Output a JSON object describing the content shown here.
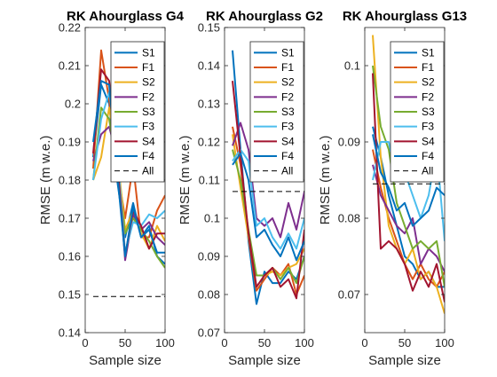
{
  "figure": {
    "background": "#ffffff"
  },
  "chart_data": [
    {
      "type": "line",
      "title": "RK Ahourglass G4",
      "xlabel": "Sample size",
      "ylabel": "RMSE (m w.e.)",
      "xlim": [
        0,
        100
      ],
      "ylim": [
        0.14,
        0.22
      ],
      "xticks": [
        0,
        50,
        100
      ],
      "xtick_labels": [
        "0",
        "50",
        "100"
      ],
      "yticks": [
        0.14,
        0.15,
        0.16,
        0.17,
        0.18,
        0.19,
        0.2,
        0.21,
        0.22
      ],
      "ytick_labels": [
        "0.14",
        "0.15",
        "0.16",
        "0.17",
        "0.18",
        "0.19",
        "0.2",
        "0.21",
        "0.22"
      ],
      "legend_position": "top-right",
      "x": [
        10,
        20,
        30,
        40,
        50,
        60,
        70,
        80,
        90,
        100
      ],
      "series": [
        {
          "name": "S1",
          "color": "#0072BD",
          "style": "solid",
          "values": [
            0.186,
            0.205,
            0.2,
            0.18,
            0.165,
            0.174,
            0.165,
            0.168,
            0.16,
            0.158
          ]
        },
        {
          "name": "F1",
          "color": "#D95319",
          "style": "solid",
          "values": [
            0.183,
            0.214,
            0.201,
            0.183,
            0.17,
            0.184,
            0.165,
            0.165,
            0.172,
            0.176
          ]
        },
        {
          "name": "S2",
          "color": "#EDB120",
          "style": "solid",
          "values": [
            0.18,
            0.186,
            0.199,
            0.187,
            0.167,
            0.172,
            0.166,
            0.162,
            0.168,
            0.164
          ]
        },
        {
          "name": "F2",
          "color": "#7E2F8E",
          "style": "solid",
          "values": [
            0.185,
            0.192,
            0.194,
            0.186,
            0.159,
            0.171,
            0.167,
            0.169,
            0.165,
            0.163
          ]
        },
        {
          "name": "S3",
          "color": "#77AC30",
          "style": "solid",
          "values": [
            0.18,
            0.199,
            0.196,
            0.183,
            0.166,
            0.17,
            0.167,
            0.164,
            0.16,
            0.157
          ]
        },
        {
          "name": "F3",
          "color": "#4DBEEE",
          "style": "solid",
          "values": [
            0.18,
            0.196,
            0.203,
            0.188,
            0.161,
            0.169,
            0.168,
            0.171,
            0.17,
            0.172
          ]
        },
        {
          "name": "S4",
          "color": "#A2142F",
          "style": "solid",
          "values": [
            0.187,
            0.209,
            0.206,
            0.185,
            0.16,
            0.172,
            0.168,
            0.162,
            0.166,
            0.166
          ]
        },
        {
          "name": "F4",
          "color": "#0072BD",
          "style": "solid",
          "values": [
            0.19,
            0.206,
            0.205,
            0.182,
            0.16,
            0.173,
            0.165,
            0.167,
            0.161,
            0.161
          ]
        },
        {
          "name": "All",
          "color": "#000000",
          "style": "dashed",
          "values": [
            0.1495,
            0.1495,
            0.1495,
            0.1495,
            0.1495,
            0.1495,
            0.1495,
            0.1495,
            0.1495,
            0.1495
          ]
        }
      ]
    },
    {
      "type": "line",
      "title": "RK Ahourglass  G2",
      "xlabel": "Sample size",
      "ylabel": "RMSE (m w.e.)",
      "xlim": [
        0,
        100
      ],
      "ylim": [
        0.07,
        0.15
      ],
      "xticks": [
        0,
        50,
        100
      ],
      "xtick_labels": [
        "0",
        "50",
        "100"
      ],
      "yticks": [
        0.07,
        0.08,
        0.09,
        0.1,
        0.11,
        0.12,
        0.13,
        0.14,
        0.15
      ],
      "ytick_labels": [
        "0.07",
        "0.08",
        "0.09",
        "0.1",
        "0.11",
        "0.12",
        "0.13",
        "0.14",
        "0.15"
      ],
      "legend_position": "top-right",
      "x": [
        10,
        20,
        30,
        40,
        50,
        60,
        70,
        80,
        90,
        100
      ],
      "series": [
        {
          "name": "S1",
          "color": "#0072BD",
          "style": "solid",
          "values": [
            0.144,
            0.118,
            0.094,
            0.0775,
            0.086,
            0.083,
            0.083,
            0.086,
            0.084,
            0.09
          ]
        },
        {
          "name": "F1",
          "color": "#D95319",
          "style": "solid",
          "values": [
            0.124,
            0.114,
            0.095,
            0.081,
            0.084,
            0.087,
            0.085,
            0.088,
            0.08,
            0.085
          ]
        },
        {
          "name": "S2",
          "color": "#EDB120",
          "style": "solid",
          "values": [
            0.122,
            0.108,
            0.095,
            0.085,
            0.085,
            0.086,
            0.085,
            0.087,
            0.088,
            0.092
          ]
        },
        {
          "name": "F2",
          "color": "#7E2F8E",
          "style": "solid",
          "values": [
            0.119,
            0.125,
            0.118,
            0.1,
            0.098,
            0.1,
            0.095,
            0.104,
            0.097,
            0.107
          ]
        },
        {
          "name": "S3",
          "color": "#77AC30",
          "style": "solid",
          "values": [
            0.118,
            0.11,
            0.097,
            0.085,
            0.085,
            0.087,
            0.084,
            0.087,
            0.083,
            0.09
          ]
        },
        {
          "name": "F3",
          "color": "#4DBEEE",
          "style": "solid",
          "values": [
            0.115,
            0.118,
            0.115,
            0.098,
            0.1,
            0.095,
            0.092,
            0.096,
            0.092,
            0.1
          ]
        },
        {
          "name": "S4",
          "color": "#A2142F",
          "style": "solid",
          "values": [
            0.136,
            0.116,
            0.096,
            0.082,
            0.085,
            0.087,
            0.082,
            0.084,
            0.079,
            0.097
          ]
        },
        {
          "name": "F4",
          "color": "#0072BD",
          "style": "solid",
          "values": [
            0.114,
            0.117,
            0.11,
            0.095,
            0.097,
            0.093,
            0.09,
            0.095,
            0.089,
            0.094
          ]
        },
        {
          "name": "All",
          "color": "#000000",
          "style": "dashed",
          "values": [
            0.107,
            0.107,
            0.107,
            0.107,
            0.107,
            0.107,
            0.107,
            0.107,
            0.107,
            0.107
          ]
        }
      ]
    },
    {
      "type": "line",
      "title": "RK Ahourglass G13",
      "xlabel": "Sample size",
      "ylabel": "RMSE (m w.e.)",
      "xlim": [
        0,
        100
      ],
      "ylim": [
        0.065,
        0.105
      ],
      "xticks": [
        0,
        50,
        100
      ],
      "xtick_labels": [
        "0",
        "50",
        "100"
      ],
      "yticks": [
        0.07,
        0.08,
        0.09,
        0.1
      ],
      "ytick_labels": [
        "0.07",
        "0.08",
        "0.09",
        "0.1"
      ],
      "legend_position": "top-right",
      "x": [
        10,
        20,
        30,
        40,
        50,
        60,
        70,
        80,
        90,
        100
      ],
      "series": [
        {
          "name": "S1",
          "color": "#0072BD",
          "style": "solid",
          "values": [
            0.092,
            0.088,
            0.083,
            0.079,
            0.075,
            0.074,
            0.072,
            0.073,
            0.071,
            0.071
          ]
        },
        {
          "name": "F1",
          "color": "#D95319",
          "style": "solid",
          "values": [
            0.089,
            0.084,
            0.08,
            0.077,
            0.074,
            0.072,
            0.074,
            0.072,
            0.071,
            0.073
          ]
        },
        {
          "name": "S2",
          "color": "#EDB120",
          "style": "solid",
          "values": [
            0.104,
            0.088,
            0.079,
            0.076,
            0.074,
            0.076,
            0.072,
            0.073,
            0.071,
            0.0675
          ]
        },
        {
          "name": "F2",
          "color": "#7E2F8E",
          "style": "solid",
          "values": [
            0.087,
            0.083,
            0.081,
            0.079,
            0.078,
            0.08,
            0.074,
            0.076,
            0.075,
            0.073
          ]
        },
        {
          "name": "S3",
          "color": "#77AC30",
          "style": "solid",
          "values": [
            0.1,
            0.092,
            0.089,
            0.082,
            0.079,
            0.076,
            0.077,
            0.076,
            0.077,
            0.071
          ]
        },
        {
          "name": "F3",
          "color": "#4DBEEE",
          "style": "solid",
          "values": [
            0.085,
            0.09,
            0.09,
            0.085,
            0.086,
            0.083,
            0.08,
            0.083,
            0.089,
            0.077
          ]
        },
        {
          "name": "S4",
          "color": "#A2142F",
          "style": "solid",
          "values": [
            0.099,
            0.076,
            0.077,
            0.076,
            0.074,
            0.0705,
            0.073,
            0.071,
            0.074,
            0.069
          ]
        },
        {
          "name": "F4",
          "color": "#0072BD",
          "style": "solid",
          "values": [
            0.091,
            0.086,
            0.084,
            0.081,
            0.082,
            0.079,
            0.08,
            0.081,
            0.084,
            0.083
          ]
        },
        {
          "name": "All",
          "color": "#000000",
          "style": "dashed",
          "values": [
            0.0845,
            0.0845,
            0.0845,
            0.0845,
            0.0845,
            0.0845,
            0.0845,
            0.0845,
            0.0845,
            0.0845
          ]
        }
      ]
    }
  ]
}
